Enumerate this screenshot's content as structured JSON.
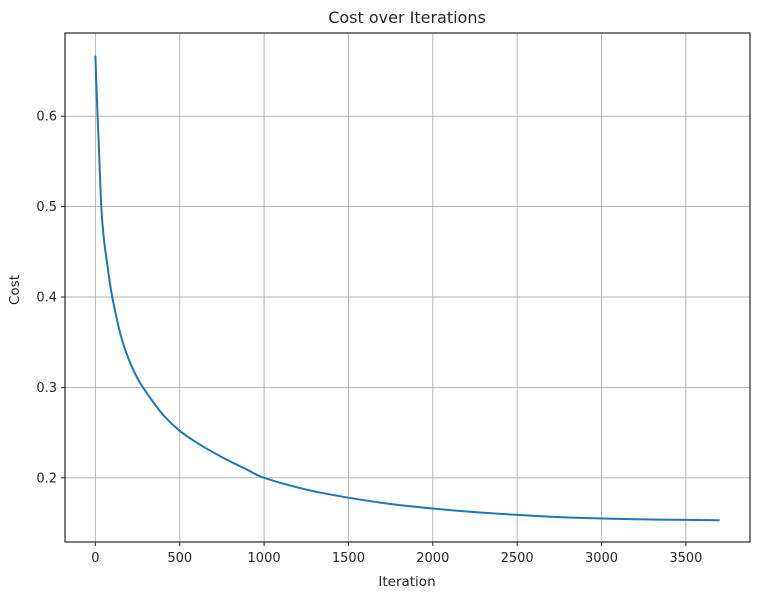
{
  "chart_data": {
    "type": "line",
    "title": "Cost over Iterations",
    "xlabel": "Iteration",
    "ylabel": "Cost",
    "xlim": [
      -180,
      3880
    ],
    "ylim": [
      0.129,
      0.692
    ],
    "xticks": [
      0,
      500,
      1000,
      1500,
      2000,
      2500,
      3000,
      3500
    ],
    "yticks": [
      0.2,
      0.3,
      0.4,
      0.5,
      0.6
    ],
    "grid": true,
    "legend": null,
    "series": [
      {
        "name": "cost",
        "color": "#1f77b4",
        "x": [
          0,
          10,
          20,
          35,
          50,
          75,
          100,
          150,
          200,
          250,
          300,
          400,
          500,
          600,
          700,
          800,
          900,
          1000,
          1250,
          1500,
          1750,
          2000,
          2250,
          2500,
          2750,
          3000,
          3250,
          3500,
          3700
        ],
        "y": [
          0.667,
          0.615,
          0.57,
          0.5,
          0.465,
          0.43,
          0.4,
          0.358,
          0.33,
          0.31,
          0.295,
          0.27,
          0.252,
          0.239,
          0.228,
          0.218,
          0.209,
          0.2,
          0.187,
          0.178,
          0.171,
          0.166,
          0.162,
          0.159,
          0.1565,
          0.155,
          0.154,
          0.1535,
          0.153
        ]
      }
    ]
  },
  "colors": {
    "line": "#1f77b4",
    "grid": "#b0b0b0",
    "axis": "#262626",
    "background": "#ffffff"
  }
}
